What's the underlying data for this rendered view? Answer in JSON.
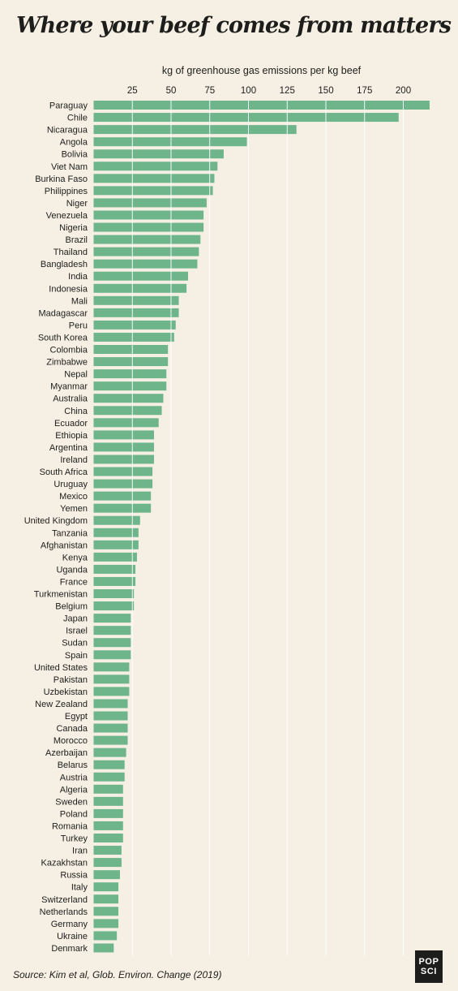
{
  "title": "Where your beef comes from matters",
  "source": "Source: Kim et al, Glob. Environ. Change (2019)",
  "logo": {
    "line1": "POP",
    "line2": "SCI"
  },
  "colors": {
    "bar": "#6fb58c",
    "background": "#f6f0e4",
    "gridline": "#ffffff",
    "text": "#1d1d1b"
  },
  "chart_data": {
    "type": "bar",
    "orientation": "horizontal",
    "title": "Where your beef comes from matters",
    "xlabel": "kg of greenhouse gas emissions per kg beef",
    "ylabel": "",
    "xlim": [
      0,
      220
    ],
    "ticks": [
      25,
      50,
      75,
      100,
      125,
      150,
      175,
      200
    ],
    "grid": true,
    "categories": [
      "Paraguay",
      "Chile",
      "Nicaragua",
      "Angola",
      "Bolivia",
      "Viet Nam",
      "Burkina Faso",
      "Philippines",
      "Niger",
      "Venezuela",
      "Nigeria",
      "Brazil",
      "Thailand",
      "Bangladesh",
      "India",
      "Indonesia",
      "Mali",
      "Madagascar",
      "Peru",
      "South Korea",
      "Colombia",
      "Zimbabwe",
      "Nepal",
      "Myanmar",
      "Australia",
      "China",
      "Ecuador",
      "Ethiopia",
      "Argentina",
      "Ireland",
      "South Africa",
      "Uruguay",
      "Mexico",
      "Yemen",
      "United Kingdom",
      "Tanzania",
      "Afghanistan",
      "Kenya",
      "Uganda",
      "France",
      "Turkmenistan",
      "Belgium",
      "Japan",
      "Israel",
      "Sudan",
      "Spain",
      "United States",
      "Pakistan",
      "Uzbekistan",
      "New Zealand",
      "Egypt",
      "Canada",
      "Morocco",
      "Azerbaijan",
      "Belarus",
      "Austria",
      "Algeria",
      "Sweden",
      "Poland",
      "Romania",
      "Turkey",
      "Iran",
      "Kazakhstan",
      "Russia",
      "Italy",
      "Switzerland",
      "Netherlands",
      "Germany",
      "Ukraine",
      "Denmark"
    ],
    "values": [
      217,
      197,
      131,
      99,
      84,
      80,
      78,
      77,
      73,
      71,
      71,
      69,
      68,
      67,
      61,
      60,
      55,
      55,
      53,
      52,
      48,
      48,
      47,
      47,
      45,
      44,
      42,
      39,
      39,
      39,
      38,
      38,
      37,
      37,
      30,
      29,
      29,
      28,
      27,
      27,
      26,
      26,
      24,
      24,
      24,
      24,
      23,
      23,
      23,
      22,
      22,
      22,
      22,
      21,
      20,
      20,
      19,
      19,
      19,
      19,
      19,
      18,
      18,
      17,
      16,
      16,
      16,
      16,
      15,
      13
    ]
  }
}
